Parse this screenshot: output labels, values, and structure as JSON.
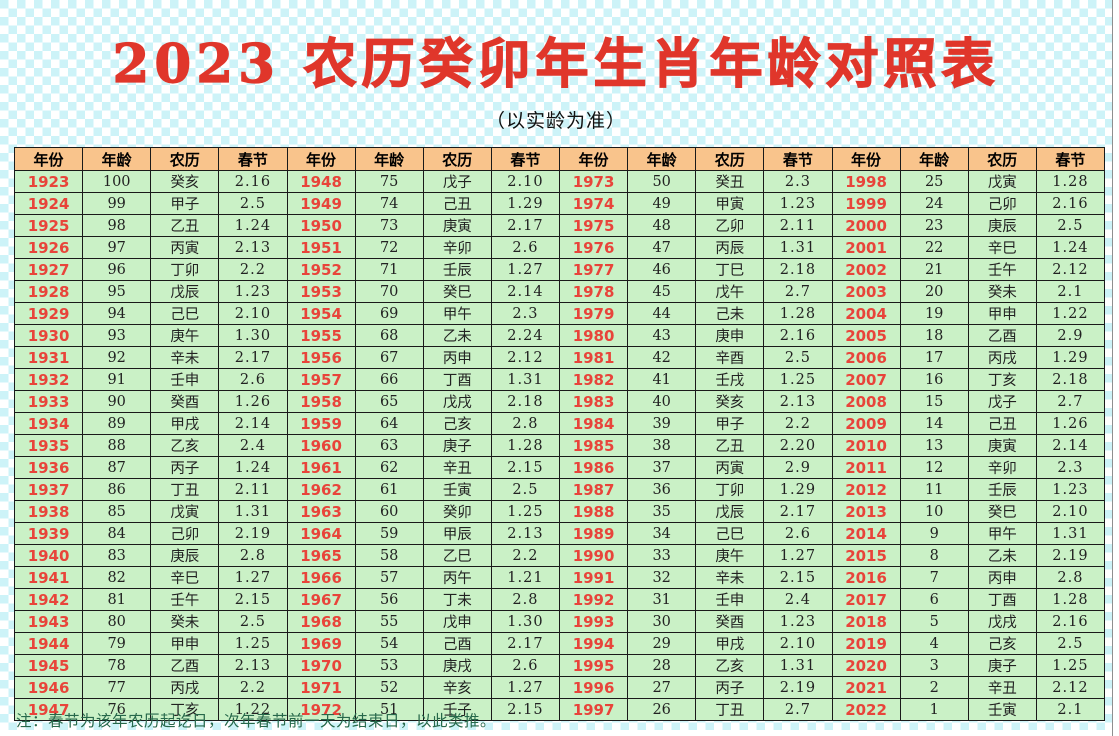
{
  "page": {
    "title": "2023 农历癸卯年生肖年龄对照表",
    "subtitle": "（以实龄为准）",
    "note": "注：春节为该年农历起讫日，次年春节前一天为结束日，以此类推。"
  },
  "colors": {
    "title_red": "#e0362b",
    "year_red": "#e8443a",
    "header_bg": "#f9c48c",
    "row_bg": "#caf1c6",
    "grid_line": "#1a1a1a",
    "note_green": "#26684a",
    "checker_cyan": "#cdf3f8"
  },
  "table": {
    "column_headers": [
      "年份",
      "年龄",
      "农历",
      "春节"
    ],
    "fields": [
      "year",
      "age",
      "lunar",
      "festival"
    ],
    "groups": [
      {
        "rows": [
          [
            "1923",
            "100",
            "癸亥",
            "2.16"
          ],
          [
            "1924",
            "99",
            "甲子",
            "2.5"
          ],
          [
            "1925",
            "98",
            "乙丑",
            "1.24"
          ],
          [
            "1926",
            "97",
            "丙寅",
            "2.13"
          ],
          [
            "1927",
            "96",
            "丁卯",
            "2.2"
          ],
          [
            "1928",
            "95",
            "戊辰",
            "1.23"
          ],
          [
            "1929",
            "94",
            "己巳",
            "2.10"
          ],
          [
            "1930",
            "93",
            "庚午",
            "1.30"
          ],
          [
            "1931",
            "92",
            "辛未",
            "2.17"
          ],
          [
            "1932",
            "91",
            "壬申",
            "2.6"
          ],
          [
            "1933",
            "90",
            "癸酉",
            "1.26"
          ],
          [
            "1934",
            "89",
            "甲戌",
            "2.14"
          ],
          [
            "1935",
            "88",
            "乙亥",
            "2.4"
          ],
          [
            "1936",
            "87",
            "丙子",
            "1.24"
          ],
          [
            "1937",
            "86",
            "丁丑",
            "2.11"
          ],
          [
            "1938",
            "85",
            "戊寅",
            "1.31"
          ],
          [
            "1939",
            "84",
            "己卯",
            "2.19"
          ],
          [
            "1940",
            "83",
            "庚辰",
            "2.8"
          ],
          [
            "1941",
            "82",
            "辛巳",
            "1.27"
          ],
          [
            "1942",
            "81",
            "壬午",
            "2.15"
          ],
          [
            "1943",
            "80",
            "癸未",
            "2.5"
          ],
          [
            "1944",
            "79",
            "甲申",
            "1.25"
          ],
          [
            "1945",
            "78",
            "乙酉",
            "2.13"
          ],
          [
            "1946",
            "77",
            "丙戌",
            "2.2"
          ],
          [
            "1947",
            "76",
            "丁亥",
            "1.22"
          ]
        ]
      },
      {
        "rows": [
          [
            "1948",
            "75",
            "戊子",
            "2.10"
          ],
          [
            "1949",
            "74",
            "己丑",
            "1.29"
          ],
          [
            "1950",
            "73",
            "庚寅",
            "2.17"
          ],
          [
            "1951",
            "72",
            "辛卯",
            "2.6"
          ],
          [
            "1952",
            "71",
            "壬辰",
            "1.27"
          ],
          [
            "1953",
            "70",
            "癸巳",
            "2.14"
          ],
          [
            "1954",
            "69",
            "甲午",
            "2.3"
          ],
          [
            "1955",
            "68",
            "乙未",
            "2.24"
          ],
          [
            "1956",
            "67",
            "丙申",
            "2.12"
          ],
          [
            "1957",
            "66",
            "丁酉",
            "1.31"
          ],
          [
            "1958",
            "65",
            "戊戌",
            "2.18"
          ],
          [
            "1959",
            "64",
            "己亥",
            "2.8"
          ],
          [
            "1960",
            "63",
            "庚子",
            "1.28"
          ],
          [
            "1961",
            "62",
            "辛丑",
            "2.15"
          ],
          [
            "1962",
            "61",
            "壬寅",
            "2.5"
          ],
          [
            "1963",
            "60",
            "癸卯",
            "1.25"
          ],
          [
            "1964",
            "59",
            "甲辰",
            "2.13"
          ],
          [
            "1965",
            "58",
            "乙巳",
            "2.2"
          ],
          [
            "1966",
            "57",
            "丙午",
            "1.21"
          ],
          [
            "1967",
            "56",
            "丁未",
            "2.8"
          ],
          [
            "1968",
            "55",
            "戊申",
            "1.30"
          ],
          [
            "1969",
            "54",
            "己酉",
            "2.17"
          ],
          [
            "1970",
            "53",
            "庚戌",
            "2.6"
          ],
          [
            "1971",
            "52",
            "辛亥",
            "1.27"
          ],
          [
            "1972",
            "51",
            "壬子",
            "2.15"
          ]
        ]
      },
      {
        "rows": [
          [
            "1973",
            "50",
            "癸丑",
            "2.3"
          ],
          [
            "1974",
            "49",
            "甲寅",
            "1.23"
          ],
          [
            "1975",
            "48",
            "乙卯",
            "2.11"
          ],
          [
            "1976",
            "47",
            "丙辰",
            "1.31"
          ],
          [
            "1977",
            "46",
            "丁巳",
            "2.18"
          ],
          [
            "1978",
            "45",
            "戊午",
            "2.7"
          ],
          [
            "1979",
            "44",
            "己未",
            "1.28"
          ],
          [
            "1980",
            "43",
            "庚申",
            "2.16"
          ],
          [
            "1981",
            "42",
            "辛酉",
            "2.5"
          ],
          [
            "1982",
            "41",
            "壬戌",
            "1.25"
          ],
          [
            "1983",
            "40",
            "癸亥",
            "2.13"
          ],
          [
            "1984",
            "39",
            "甲子",
            "2.2"
          ],
          [
            "1985",
            "38",
            "乙丑",
            "2.20"
          ],
          [
            "1986",
            "37",
            "丙寅",
            "2.9"
          ],
          [
            "1987",
            "36",
            "丁卯",
            "1.29"
          ],
          [
            "1988",
            "35",
            "戊辰",
            "2.17"
          ],
          [
            "1989",
            "34",
            "己巳",
            "2.6"
          ],
          [
            "1990",
            "33",
            "庚午",
            "1.27"
          ],
          [
            "1991",
            "32",
            "辛未",
            "2.15"
          ],
          [
            "1992",
            "31",
            "壬申",
            "2.4"
          ],
          [
            "1993",
            "30",
            "癸酉",
            "1.23"
          ],
          [
            "1994",
            "29",
            "甲戌",
            "2.10"
          ],
          [
            "1995",
            "28",
            "乙亥",
            "1.31"
          ],
          [
            "1996",
            "27",
            "丙子",
            "2.19"
          ],
          [
            "1997",
            "26",
            "丁丑",
            "2.7"
          ]
        ]
      },
      {
        "rows": [
          [
            "1998",
            "25",
            "戊寅",
            "1.28"
          ],
          [
            "1999",
            "24",
            "己卯",
            "2.16"
          ],
          [
            "2000",
            "23",
            "庚辰",
            "2.5"
          ],
          [
            "2001",
            "22",
            "辛巳",
            "1.24"
          ],
          [
            "2002",
            "21",
            "壬午",
            "2.12"
          ],
          [
            "2003",
            "20",
            "癸未",
            "2.1"
          ],
          [
            "2004",
            "19",
            "甲申",
            "1.22"
          ],
          [
            "2005",
            "18",
            "乙酉",
            "2.9"
          ],
          [
            "2006",
            "17",
            "丙戌",
            "1.29"
          ],
          [
            "2007",
            "16",
            "丁亥",
            "2.18"
          ],
          [
            "2008",
            "15",
            "戊子",
            "2.7"
          ],
          [
            "2009",
            "14",
            "己丑",
            "1.26"
          ],
          [
            "2010",
            "13",
            "庚寅",
            "2.14"
          ],
          [
            "2011",
            "12",
            "辛卯",
            "2.3"
          ],
          [
            "2012",
            "11",
            "壬辰",
            "1.23"
          ],
          [
            "2013",
            "10",
            "癸巳",
            "2.10"
          ],
          [
            "2014",
            "9",
            "甲午",
            "1.31"
          ],
          [
            "2015",
            "8",
            "乙未",
            "2.19"
          ],
          [
            "2016",
            "7",
            "丙申",
            "2.8"
          ],
          [
            "2017",
            "6",
            "丁酉",
            "1.28"
          ],
          [
            "2018",
            "5",
            "戊戌",
            "2.16"
          ],
          [
            "2019",
            "4",
            "己亥",
            "2.5"
          ],
          [
            "2020",
            "3",
            "庚子",
            "1.25"
          ],
          [
            "2021",
            "2",
            "辛丑",
            "2.12"
          ],
          [
            "2022",
            "1",
            "壬寅",
            "2.1"
          ]
        ]
      }
    ]
  }
}
